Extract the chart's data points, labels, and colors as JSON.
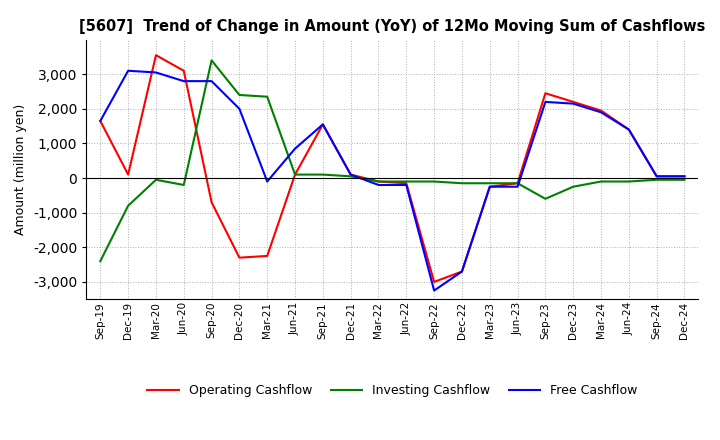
{
  "title": "[5607]  Trend of Change in Amount (YoY) of 12Mo Moving Sum of Cashflows",
  "ylabel": "Amount (million yen)",
  "ylim": [
    -3500,
    4000
  ],
  "yticks": [
    -3000,
    -2000,
    -1000,
    0,
    1000,
    2000,
    3000
  ],
  "x_labels": [
    "Sep-19",
    "Dec-19",
    "Mar-20",
    "Jun-20",
    "Sep-20",
    "Dec-20",
    "Mar-21",
    "Jun-21",
    "Sep-21",
    "Dec-21",
    "Mar-22",
    "Jun-22",
    "Sep-22",
    "Dec-22",
    "Mar-23",
    "Jun-23",
    "Sep-23",
    "Dec-23",
    "Mar-24",
    "Jun-24",
    "Sep-24",
    "Dec-24"
  ],
  "operating": [
    1650,
    100,
    3550,
    3100,
    -700,
    -2300,
    -2250,
    100,
    1550,
    100,
    -100,
    -150,
    -3000,
    -2700,
    -250,
    -150,
    2450,
    2200,
    1950,
    1400,
    50,
    50
  ],
  "investing": [
    -2400,
    -800,
    -50,
    -200,
    3400,
    2400,
    2350,
    100,
    100,
    50,
    -100,
    -100,
    -100,
    -150,
    -150,
    -150,
    -600,
    -250,
    -100,
    -100,
    -50,
    -50
  ],
  "free": [
    1650,
    3100,
    3050,
    2800,
    2800,
    2000,
    -100,
    850,
    1550,
    100,
    -200,
    -200,
    -3250,
    -2700,
    -250,
    -250,
    2200,
    2150,
    1900,
    1400,
    50,
    50
  ],
  "operating_color": "#ff0000",
  "investing_color": "#008000",
  "free_color": "#0000ff",
  "bg_color": "#ffffff",
  "grid_color": "#b0b0b0"
}
